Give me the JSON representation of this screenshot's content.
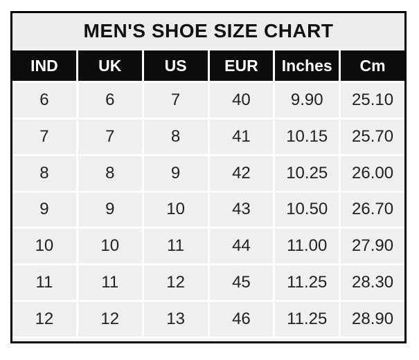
{
  "page": {
    "background": "#ffffff"
  },
  "table": {
    "title": "MEN'S SHOE SIZE CHART",
    "colors": {
      "outer_border": "#000000",
      "title_bg": "#ececec",
      "header_bg": "#0d0d0d",
      "header_text": "#ffffff",
      "cell_bg": "#efefef",
      "cell_text": "#212121",
      "grid_line": "#ffffff"
    }
  },
  "chart_data": {
    "type": "table",
    "title": "MEN'S SHOE SIZE CHART",
    "columns": [
      "IND",
      "UK",
      "US",
      "EUR",
      "Inches",
      "Cm"
    ],
    "rows": [
      [
        "6",
        "6",
        "7",
        "40",
        "9.90",
        "25.10"
      ],
      [
        "7",
        "7",
        "8",
        "41",
        "10.15",
        "25.70"
      ],
      [
        "8",
        "8",
        "9",
        "42",
        "10.25",
        "26.00"
      ],
      [
        "9",
        "9",
        "10",
        "43",
        "10.50",
        "26.70"
      ],
      [
        "10",
        "10",
        "11",
        "44",
        "11.00",
        "27.90"
      ],
      [
        "11",
        "11",
        "12",
        "45",
        "11.25",
        "28.30"
      ],
      [
        "12",
        "12",
        "13",
        "46",
        "11.25",
        "28.90"
      ]
    ]
  }
}
